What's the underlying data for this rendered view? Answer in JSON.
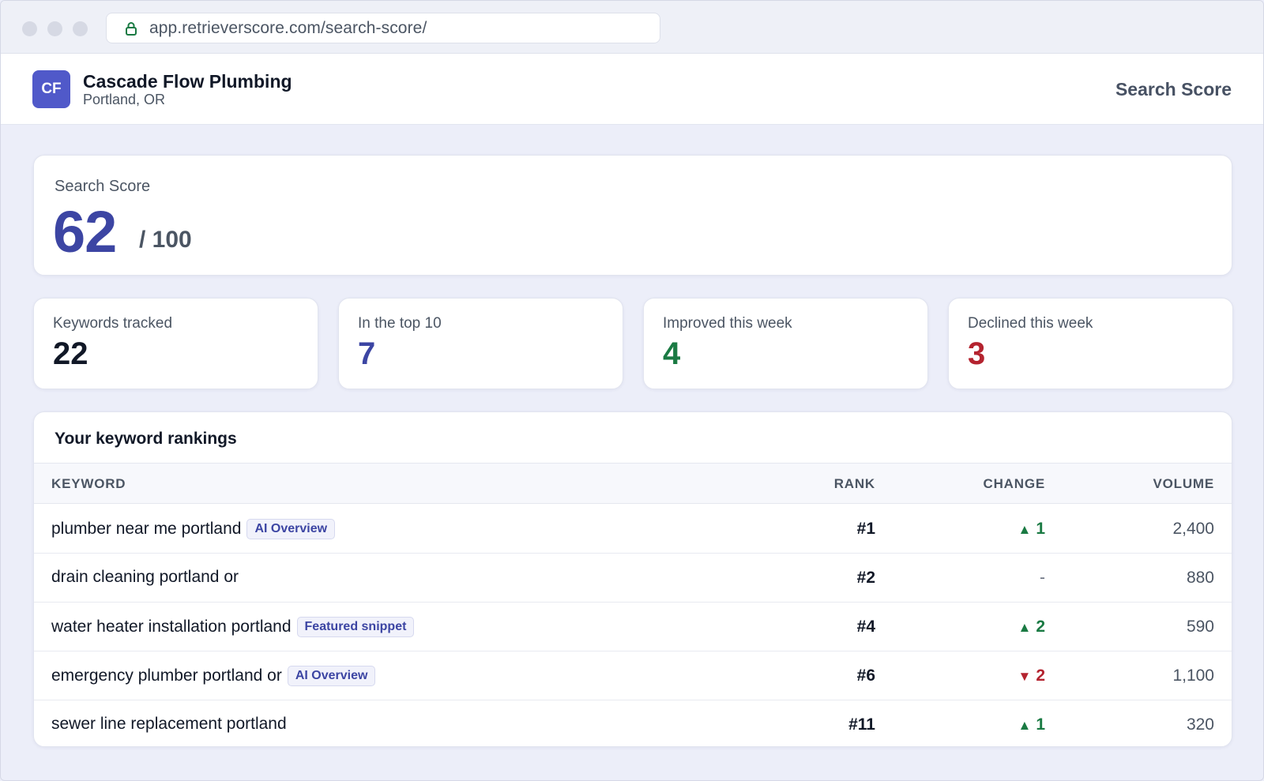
{
  "browser": {
    "url": "app.retrieverscore.com/search-score/"
  },
  "header": {
    "avatar_initials": "CF",
    "business_name": "Cascade Flow Plumbing",
    "location": "Portland, OR",
    "nav_link": "Search Score"
  },
  "score": {
    "label": "Search Score",
    "value": "62",
    "max": "/ 100"
  },
  "stats": [
    {
      "label": "Keywords tracked",
      "value": "22",
      "color": "#111827"
    },
    {
      "label": "In the top 10",
      "value": "7",
      "color": "#3c45a3"
    },
    {
      "label": "Improved this week",
      "value": "4",
      "color": "#1a7a43"
    },
    {
      "label": "Declined this week",
      "value": "3",
      "color": "#b4232f"
    }
  ],
  "rankings": {
    "title": "Your keyword rankings",
    "columns": {
      "keyword": "KEYWORD",
      "rank": "RANK",
      "change": "CHANGE",
      "volume": "VOLUME"
    },
    "rows": [
      {
        "keyword": "plumber near me portland",
        "badge": "AI Overview",
        "rank": "#1",
        "change_dir": "up",
        "change_arrow": "▲",
        "change": "1",
        "volume": "2,400"
      },
      {
        "keyword": "drain cleaning portland or",
        "badge": "",
        "rank": "#2",
        "change_dir": "none",
        "change_arrow": "",
        "change": "-",
        "volume": "880"
      },
      {
        "keyword": "water heater installation portland",
        "badge": "Featured snippet",
        "rank": "#4",
        "change_dir": "up",
        "change_arrow": "▲",
        "change": "2",
        "volume": "590"
      },
      {
        "keyword": "emergency plumber portland or",
        "badge": "AI Overview",
        "rank": "#6",
        "change_dir": "down",
        "change_arrow": "▼",
        "change": "2",
        "volume": "1,100"
      },
      {
        "keyword": "sewer line replacement portland",
        "badge": "",
        "rank": "#11",
        "change_dir": "up",
        "change_arrow": "▲",
        "change": "1",
        "volume": "320"
      }
    ]
  },
  "colors": {
    "accent": "#3c45a3",
    "avatar_bg": "#5059c9",
    "up": "#1a7a43",
    "down": "#b4232f",
    "page_bg": "#eceef9"
  },
  "icons": {
    "lock": "lock-icon"
  }
}
